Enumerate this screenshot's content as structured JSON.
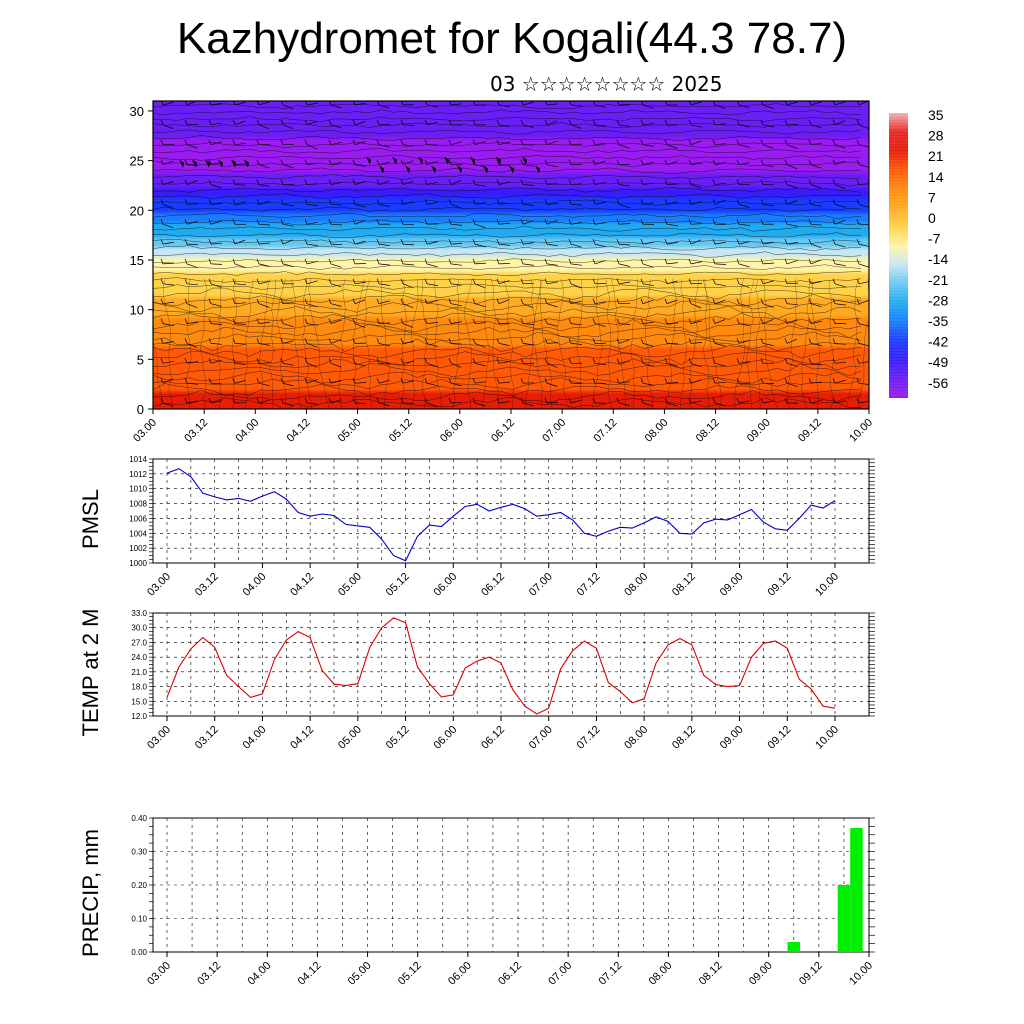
{
  "title": "Kazhydromet for Kogali(44.3 78.7)",
  "subtitle": "03 ☆☆☆☆☆☆☆☆ 2025",
  "colors": {
    "pmsl_line": "#0000cc",
    "temp_line": "#dd0000",
    "precip_bar": "#00ee00",
    "barb": "#000000"
  },
  "chart_data": [
    {
      "type": "heatmap",
      "name": "temperature-cross-section",
      "xlabel": "",
      "ylabel": "",
      "x_ticks": [
        "03.00",
        "03.12",
        "04.00",
        "04.12",
        "05.00",
        "05.12",
        "06.00",
        "06.12",
        "07.00",
        "07.12",
        "08.00",
        "08.12",
        "09.00",
        "09.12",
        "10.00"
      ],
      "y_ticks": [
        0,
        5,
        10,
        15,
        20,
        25,
        30
      ],
      "ylim": [
        0,
        31
      ],
      "colorbar_labels": [
        "35",
        "28",
        "21",
        "14",
        "7",
        "0",
        "-7",
        "-14",
        "-21",
        "-28",
        "-35",
        "-42",
        "-49",
        "-56"
      ],
      "colorbar_range": [
        -63,
        42
      ],
      "levels_km": [
        0,
        2,
        4,
        6,
        8,
        10,
        12,
        14,
        16,
        18,
        20,
        22,
        24,
        26,
        28,
        30
      ],
      "temperature_profile": [
        {
          "z": 0,
          "t": 30
        },
        {
          "z": 5,
          "t": 24
        },
        {
          "z": 10,
          "t": 12
        },
        {
          "z": 15,
          "t": -5
        },
        {
          "z": 18,
          "t": -25
        },
        {
          "z": 20,
          "t": -35
        },
        {
          "z": 24,
          "t": -58
        },
        {
          "z": 27,
          "t": -56
        },
        {
          "z": 31,
          "t": -55
        }
      ],
      "overlay": "wind barbs"
    },
    {
      "type": "line",
      "name": "pmsl",
      "ylabel": "PMSL",
      "ylim": [
        1000,
        1014
      ],
      "y_ticks": [
        "1014",
        "1012",
        "1010",
        "1008",
        "1006",
        "1004",
        "1002",
        "1000"
      ],
      "x_ticks": [
        "03.00",
        "03.12",
        "04.00",
        "04.12",
        "05.00",
        "05.12",
        "06.00",
        "06.12",
        "07.00",
        "07.12",
        "08.00",
        "08.12",
        "09.00",
        "09.12",
        "10.00"
      ],
      "grid": true,
      "x_hours": [
        0,
        3,
        6,
        9,
        12,
        15,
        18,
        21,
        24,
        27,
        30,
        33,
        36,
        39,
        42,
        45,
        48,
        51,
        54,
        57,
        60,
        63,
        66,
        69,
        72,
        75,
        78,
        81,
        84,
        87,
        90,
        93,
        96,
        99,
        102,
        105,
        108,
        111,
        114,
        117,
        120,
        123,
        126,
        129,
        132,
        135,
        138,
        141,
        144,
        147,
        150,
        153,
        156,
        159,
        162,
        165,
        168
      ],
      "values": [
        1012.1,
        1012.7,
        1011.6,
        1009.4,
        1008.9,
        1008.5,
        1008.7,
        1008.3,
        1009.0,
        1009.6,
        1008.6,
        1006.8,
        1006.3,
        1006.6,
        1006.4,
        1005.2,
        1005.0,
        1004.8,
        1003.2,
        1001.0,
        1000.3,
        1003.6,
        1005.1,
        1004.9,
        1006.3,
        1007.6,
        1007.9,
        1007.0,
        1007.5,
        1007.9,
        1007.3,
        1006.3,
        1006.5,
        1006.8,
        1005.8,
        1004.0,
        1003.6,
        1004.3,
        1004.8,
        1004.7,
        1005.4,
        1006.2,
        1005.6,
        1004.0,
        1003.9,
        1005.4,
        1005.9,
        1005.8,
        1006.5,
        1007.2,
        1005.5,
        1004.6,
        1004.4,
        1006.0,
        1007.8,
        1007.4,
        1008.4
      ]
    },
    {
      "type": "line",
      "name": "temp-2m",
      "ylabel": "TEMP at 2 M",
      "ylim": [
        12.0,
        33.0
      ],
      "y_ticks": [
        "33.0",
        "30.0",
        "27.0",
        "24.0",
        "21.0",
        "18.0",
        "15.0",
        "12.0"
      ],
      "x_ticks": [
        "03.00",
        "03.12",
        "04.00",
        "04.12",
        "05.00",
        "05.12",
        "06.00",
        "06.12",
        "07.00",
        "07.12",
        "08.00",
        "08.12",
        "09.00",
        "09.12",
        "10.00"
      ],
      "grid": true,
      "x_hours": [
        0,
        3,
        6,
        9,
        12,
        15,
        18,
        21,
        24,
        27,
        30,
        33,
        36,
        39,
        42,
        45,
        48,
        51,
        54,
        57,
        60,
        63,
        66,
        69,
        72,
        75,
        78,
        81,
        84,
        87,
        90,
        93,
        96,
        99,
        102,
        105,
        108,
        111,
        114,
        117,
        120,
        123,
        126,
        129,
        132,
        135,
        138,
        141,
        144,
        147,
        150,
        153,
        156,
        159,
        162,
        165,
        168
      ],
      "values": [
        15.8,
        22.0,
        25.7,
        28.0,
        26.0,
        20.3,
        18.0,
        15.8,
        16.5,
        23.5,
        27.5,
        29.2,
        28.0,
        21.3,
        18.5,
        18.2,
        18.6,
        26.0,
        30.0,
        32.0,
        31.0,
        22.0,
        18.6,
        15.9,
        16.3,
        21.8,
        23.2,
        24.0,
        22.8,
        17.3,
        14.0,
        12.4,
        13.6,
        21.6,
        25.3,
        27.3,
        25.8,
        18.8,
        17.0,
        14.7,
        15.5,
        22.8,
        26.5,
        27.8,
        26.5,
        20.3,
        18.4,
        18.0,
        18.2,
        24.0,
        26.8,
        27.3,
        25.8,
        19.5,
        17.5,
        14.0,
        13.6
      ]
    },
    {
      "type": "bar",
      "name": "precip",
      "ylabel": "PRECIP, mm",
      "ylim": [
        0.0,
        0.4
      ],
      "y_ticks": [
        "0.40",
        "0.30",
        "0.20",
        "0.10",
        "0.00"
      ],
      "x_ticks": [
        "03.00",
        "03.12",
        "04.00",
        "04.12",
        "05.00",
        "05.12",
        "06.00",
        "06.12",
        "07.00",
        "07.12",
        "08.00",
        "08.12",
        "09.00",
        "09.12",
        "10.00"
      ],
      "grid": true,
      "bars": [
        {
          "x_hours": 150,
          "value": 0.03
        },
        {
          "x_hours": 162,
          "value": 0.2
        },
        {
          "x_hours": 165,
          "value": 0.37
        }
      ]
    }
  ]
}
